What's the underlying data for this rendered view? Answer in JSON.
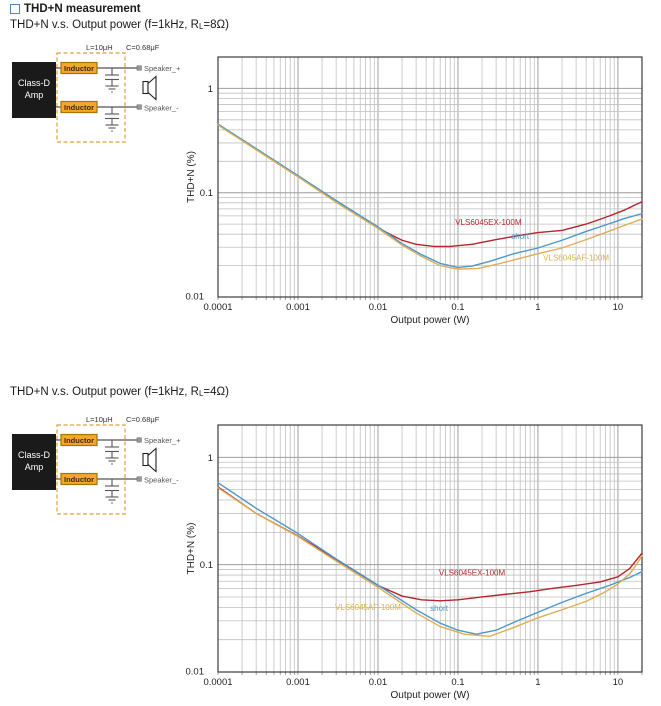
{
  "header": {
    "title": "THD+N measurement",
    "marker_color": "#4a87c4"
  },
  "sections": [
    {
      "title_prefix": "THD+N v.s. Output power (f=1kHz, R",
      "title_sub": "L",
      "title_suffix": "=8Ω)"
    },
    {
      "title_prefix": "THD+N v.s. Output power (f=1kHz, R",
      "title_sub": "L",
      "title_suffix": "=4Ω)"
    }
  ],
  "diagram": {
    "cap_l": "L=10μH",
    "cap_c": "C=0.68μF",
    "amp1": "Class-D",
    "amp2": "Amp",
    "inductor": "Inductor",
    "spk_p": "Speaker_+",
    "spk_m": "Speaker_-"
  },
  "chart_data": [
    {
      "type": "line",
      "title": "THD+N v.s. Output power (f=1kHz, RL=8Ω)",
      "xlabel": "Output power (W)",
      "ylabel": "THD+N (%)",
      "xscale": "log",
      "yscale": "log",
      "xlim": [
        0.0001,
        20
      ],
      "ylim": [
        0.01,
        2
      ],
      "x_ticks": [
        "0.0001",
        "0.001",
        "0.01",
        "0.1",
        "1",
        "10"
      ],
      "y_ticks": [
        "1",
        "0.1",
        "0.01"
      ],
      "grid": true,
      "series": [
        {
          "name": "VLS6045EX-100M",
          "color": "#b6252c",
          "label_pos": [
            0.24,
            0.049
          ],
          "points": [
            [
              0.0001,
              0.45
            ],
            [
              0.0003,
              0.26
            ],
            [
              0.001,
              0.143
            ],
            [
              0.003,
              0.082
            ],
            [
              0.01,
              0.046
            ],
            [
              0.015,
              0.039
            ],
            [
              0.02,
              0.035
            ],
            [
              0.03,
              0.032
            ],
            [
              0.05,
              0.0305
            ],
            [
              0.08,
              0.0305
            ],
            [
              0.15,
              0.032
            ],
            [
              0.3,
              0.0355
            ],
            [
              0.6,
              0.039
            ],
            [
              1,
              0.0415
            ],
            [
              2,
              0.0435
            ],
            [
              4,
              0.05
            ],
            [
              7,
              0.058
            ],
            [
              12,
              0.068
            ],
            [
              20,
              0.082
            ]
          ]
        },
        {
          "name": "short",
          "color": "#4b98cb",
          "label_pos": [
            0.6,
            0.036
          ],
          "points": [
            [
              0.0001,
              0.455
            ],
            [
              0.0003,
              0.265
            ],
            [
              0.001,
              0.146
            ],
            [
              0.003,
              0.084
            ],
            [
              0.01,
              0.047
            ],
            [
              0.02,
              0.0325
            ],
            [
              0.035,
              0.0255
            ],
            [
              0.06,
              0.021
            ],
            [
              0.1,
              0.0192
            ],
            [
              0.15,
              0.0198
            ],
            [
              0.25,
              0.022
            ],
            [
              0.5,
              0.026
            ],
            [
              1,
              0.0295
            ],
            [
              2,
              0.035
            ],
            [
              4,
              0.0425
            ],
            [
              7,
              0.049
            ],
            [
              12,
              0.0565
            ],
            [
              20,
              0.063
            ]
          ]
        },
        {
          "name": "VLS6045AF-100M",
          "color": "#ddae55",
          "label_pos": [
            3,
            0.0225
          ],
          "points": [
            [
              0.0001,
              0.445
            ],
            [
              0.0003,
              0.258
            ],
            [
              0.001,
              0.142
            ],
            [
              0.003,
              0.081
            ],
            [
              0.01,
              0.0455
            ],
            [
              0.02,
              0.0315
            ],
            [
              0.035,
              0.0245
            ],
            [
              0.06,
              0.02
            ],
            [
              0.1,
              0.0185
            ],
            [
              0.18,
              0.0188
            ],
            [
              0.3,
              0.0205
            ],
            [
              0.6,
              0.0235
            ],
            [
              1,
              0.026
            ],
            [
              2,
              0.0295
            ],
            [
              4,
              0.0355
            ],
            [
              7,
              0.0415
            ],
            [
              12,
              0.0485
            ],
            [
              20,
              0.056
            ]
          ]
        }
      ]
    },
    {
      "type": "line",
      "title": "THD+N v.s. Output power (f=1kHz, RL=4Ω)",
      "xlabel": "Output power (W)",
      "ylabel": "THD+N (%)",
      "xscale": "log",
      "yscale": "log",
      "xlim": [
        0.0001,
        20
      ],
      "ylim": [
        0.01,
        2
      ],
      "x_ticks": [
        "0.0001",
        "0.001",
        "0.01",
        "0.1",
        "1",
        "10"
      ],
      "y_ticks": [
        "1",
        "0.1",
        "0.01"
      ],
      "grid": true,
      "series": [
        {
          "name": "VLS6045EX-100M",
          "color": "#b6252c",
          "label_pos": [
            0.15,
            0.079
          ],
          "points": [
            [
              0.0001,
              0.53
            ],
            [
              0.0003,
              0.3
            ],
            [
              0.001,
              0.185
            ],
            [
              0.003,
              0.112
            ],
            [
              0.01,
              0.064
            ],
            [
              0.02,
              0.051
            ],
            [
              0.035,
              0.047
            ],
            [
              0.06,
              0.046
            ],
            [
              0.1,
              0.047
            ],
            [
              0.2,
              0.05
            ],
            [
              0.4,
              0.053
            ],
            [
              0.8,
              0.056
            ],
            [
              1.5,
              0.06
            ],
            [
              3,
              0.064
            ],
            [
              6,
              0.069
            ],
            [
              10,
              0.077
            ],
            [
              14,
              0.092
            ],
            [
              20,
              0.128
            ]
          ]
        },
        {
          "name": "short",
          "color": "#4b98cb",
          "label_pos": [
            0.058,
            0.037
          ],
          "points": [
            [
              0.0001,
              0.58
            ],
            [
              0.0003,
              0.335
            ],
            [
              0.001,
              0.195
            ],
            [
              0.003,
              0.113
            ],
            [
              0.01,
              0.0645
            ],
            [
              0.03,
              0.038
            ],
            [
              0.06,
              0.0285
            ],
            [
              0.1,
              0.0245
            ],
            [
              0.17,
              0.0225
            ],
            [
              0.3,
              0.0245
            ],
            [
              0.5,
              0.029
            ],
            [
              1,
              0.036
            ],
            [
              2,
              0.0445
            ],
            [
              4,
              0.054
            ],
            [
              8,
              0.0645
            ],
            [
              14,
              0.076
            ],
            [
              20,
              0.086
            ]
          ]
        },
        {
          "name": "VLS6045AF-100M",
          "color": "#ddae55",
          "label_pos": [
            0.0075,
            0.038
          ],
          "points": [
            [
              0.0001,
              0.52
            ],
            [
              0.0003,
              0.3
            ],
            [
              0.001,
              0.183
            ],
            [
              0.003,
              0.108
            ],
            [
              0.01,
              0.0615
            ],
            [
              0.03,
              0.0355
            ],
            [
              0.06,
              0.0265
            ],
            [
              0.12,
              0.0225
            ],
            [
              0.25,
              0.0215
            ],
            [
              0.5,
              0.026
            ],
            [
              1,
              0.032
            ],
            [
              2,
              0.038
            ],
            [
              4,
              0.0455
            ],
            [
              7,
              0.056
            ],
            [
              10,
              0.066
            ],
            [
              14,
              0.082
            ],
            [
              17,
              0.1
            ],
            [
              20,
              0.121
            ]
          ]
        }
      ]
    }
  ]
}
